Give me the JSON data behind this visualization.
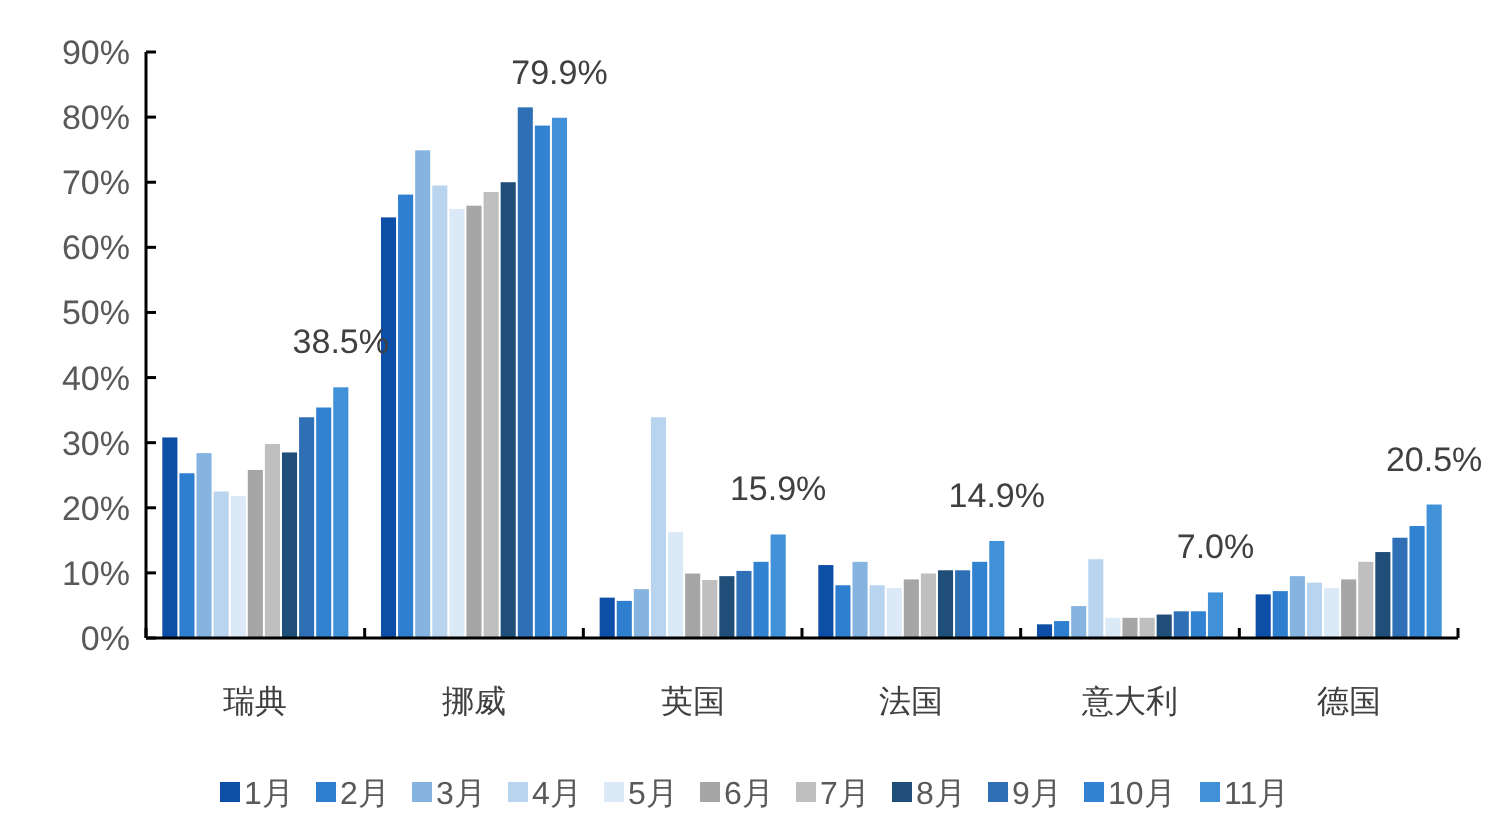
{
  "chart_data": {
    "type": "bar",
    "categories": [
      "瑞典",
      "挪威",
      "英国",
      "法国",
      "意大利",
      "德国"
    ],
    "ylim": [
      0,
      90
    ],
    "yticks": [
      {
        "value": 0,
        "label": "0%"
      },
      {
        "value": 10,
        "label": "10%"
      },
      {
        "value": 20,
        "label": "20%"
      },
      {
        "value": 30,
        "label": "30%"
      },
      {
        "value": 40,
        "label": "40%"
      },
      {
        "value": 50,
        "label": "50%"
      },
      {
        "value": 60,
        "label": "60%"
      },
      {
        "value": 70,
        "label": "70%"
      },
      {
        "value": 80,
        "label": "80%"
      },
      {
        "value": 90,
        "label": "90%"
      }
    ],
    "grid": false,
    "legend": "bottom",
    "series": [
      {
        "name": "1月",
        "color": "#0d4ea6",
        "values": [
          30.8,
          64.6,
          6.2,
          11.2,
          2.1,
          6.7
        ]
      },
      {
        "name": "2月",
        "color": "#2e7fd0",
        "values": [
          25.3,
          68.1,
          5.7,
          8.1,
          2.6,
          7.2
        ]
      },
      {
        "name": "3月",
        "color": "#86b4e0",
        "values": [
          28.4,
          74.9,
          7.5,
          11.7,
          4.9,
          9.5
        ]
      },
      {
        "name": "4月",
        "color": "#b9d4ef",
        "values": [
          22.5,
          69.5,
          33.9,
          8.1,
          12.1,
          8.5
        ]
      },
      {
        "name": "5月",
        "color": "#dce9f7",
        "values": [
          21.8,
          65.9,
          16.3,
          7.7,
          3.1,
          7.7
        ]
      },
      {
        "name": "6月",
        "color": "#a6a6a6",
        "values": [
          25.8,
          66.4,
          9.9,
          9.0,
          3.1,
          9.0
        ]
      },
      {
        "name": "7月",
        "color": "#bfbfbf",
        "values": [
          29.8,
          68.5,
          8.9,
          9.9,
          3.1,
          11.7
        ]
      },
      {
        "name": "8月",
        "color": "#1f4e79",
        "values": [
          28.5,
          70.0,
          9.5,
          10.4,
          3.6,
          13.2
        ]
      },
      {
        "name": "9月",
        "color": "#2e6fb5",
        "values": [
          33.9,
          81.5,
          10.3,
          10.4,
          4.1,
          15.4
        ]
      },
      {
        "name": "10月",
        "color": "#3282d2",
        "values": [
          35.4,
          78.7,
          11.7,
          11.7,
          4.1,
          17.2
        ]
      },
      {
        "name": "11月",
        "color": "#4191d9",
        "values": [
          38.5,
          79.9,
          15.9,
          14.9,
          7.0,
          20.5
        ],
        "value_labels": [
          "38.5%",
          "79.9%",
          "15.9%",
          "14.9%",
          "7.0%",
          "20.5%"
        ]
      }
    ]
  }
}
